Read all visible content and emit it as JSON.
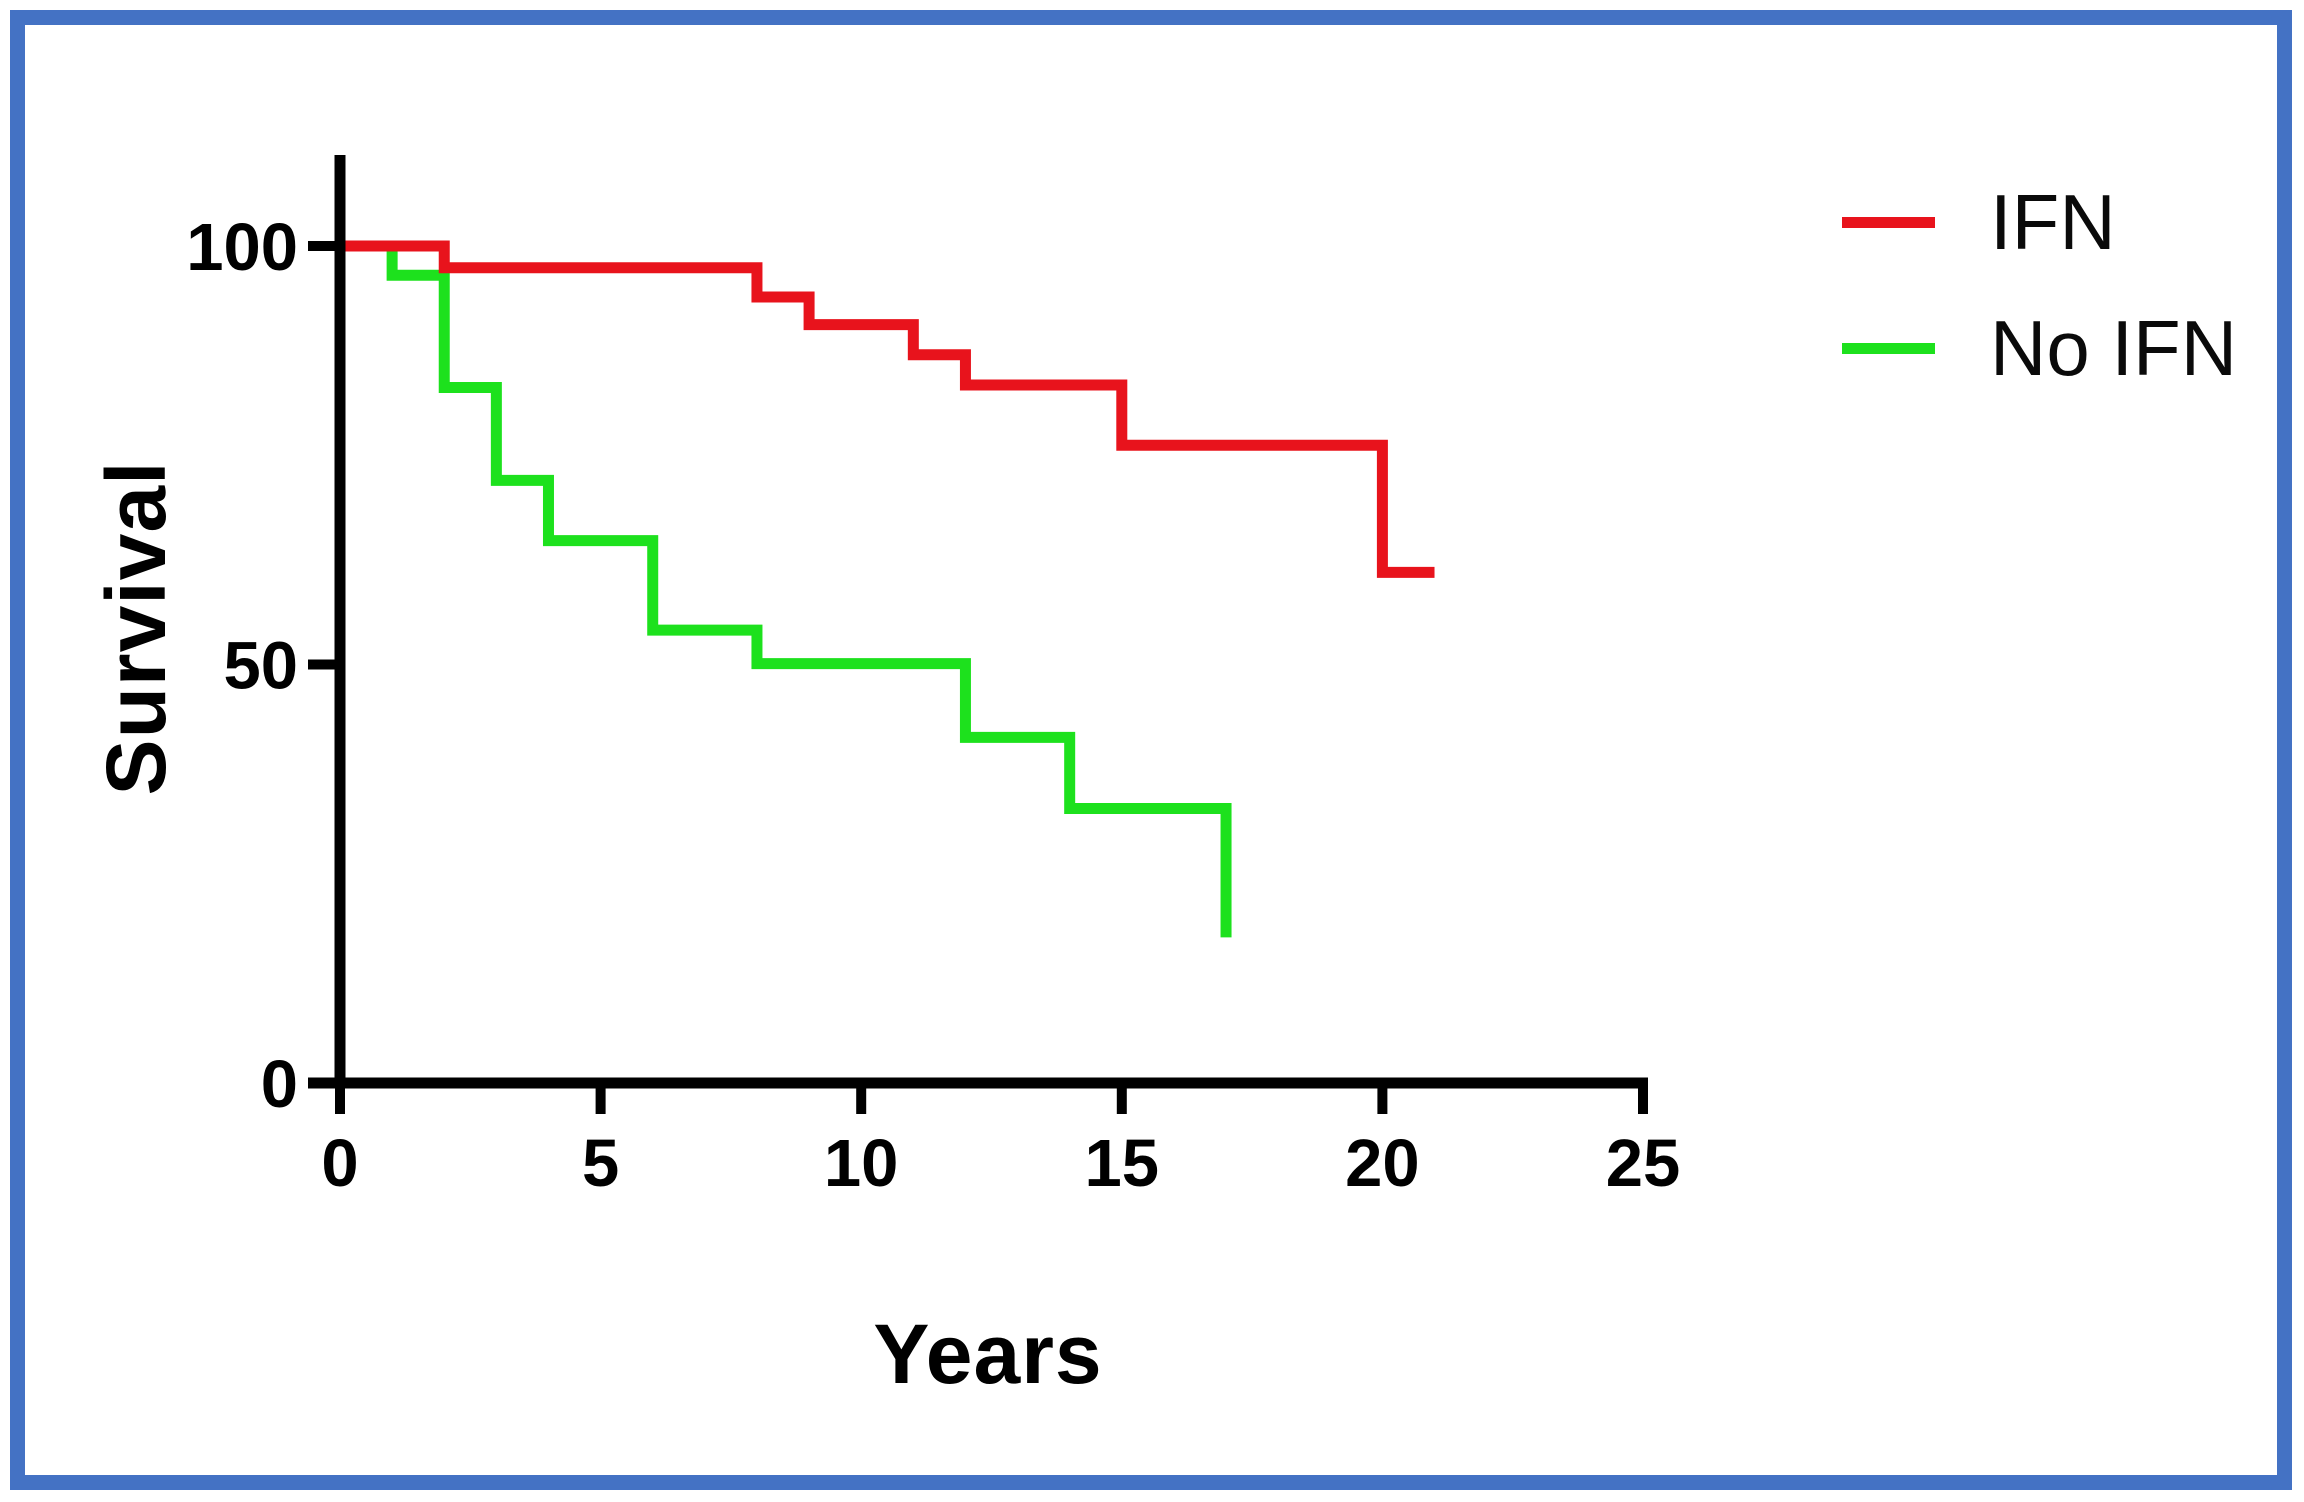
{
  "figure": {
    "border_color": "#4472C4",
    "background_color": "#FFFFFF",
    "axis_color": "#000000"
  },
  "chart_data": {
    "type": "line",
    "subtype": "kaplan-meier-step-survival",
    "title": "",
    "xlabel": "Years",
    "ylabel": "Survival",
    "xlim": [
      0,
      25
    ],
    "ylim": [
      0,
      100
    ],
    "x_ticks": [
      0,
      5,
      10,
      15,
      20,
      25
    ],
    "y_ticks": [
      100,
      50,
      0
    ],
    "grid": false,
    "legend_position": "top-right-outside",
    "series": [
      {
        "name": "IFN",
        "color": "#E8131C",
        "start": [
          0,
          100
        ],
        "drops": [
          [
            2,
            97.4
          ],
          [
            8,
            93.9
          ],
          [
            9,
            90.6
          ],
          [
            11,
            87.0
          ],
          [
            12,
            83.4
          ],
          [
            15,
            76.2
          ],
          [
            20,
            61.0
          ]
        ],
        "end_x": 21
      },
      {
        "name": "No IFN",
        "color": "#1DE11D",
        "start": [
          0,
          100
        ],
        "drops": [
          [
            1,
            96.5
          ],
          [
            2,
            83.1
          ],
          [
            3,
            72.0
          ],
          [
            4,
            64.8
          ],
          [
            6,
            54.1
          ],
          [
            8,
            50.1
          ],
          [
            12,
            41.3
          ],
          [
            14,
            32.8
          ],
          [
            17,
            17.4
          ]
        ],
        "end_x": 17
      }
    ]
  }
}
